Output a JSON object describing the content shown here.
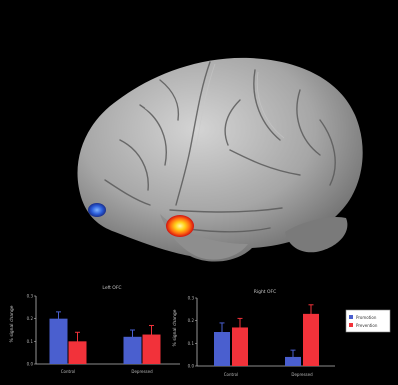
{
  "colors": {
    "background": "#000000",
    "brain_surface": "#a9a9a9",
    "series_promotion": "#4a5fcf",
    "series_prevention": "#f2323a",
    "activation_hot": "#ffd21a",
    "activation_cool": "#2a5bd8"
  },
  "chart_data": [
    {
      "type": "bar",
      "title": "Left OFC",
      "ylabel": "% signal change",
      "categories": [
        "Control",
        "Depressed"
      ],
      "ylim": [
        0,
        0.3
      ],
      "yticks": [
        "0.3",
        "0.2",
        "0.1",
        "0.0"
      ],
      "series": [
        {
          "name": "Promotion",
          "values": [
            0.2,
            0.12
          ],
          "errors": [
            0.03,
            0.03
          ]
        },
        {
          "name": "Prevention",
          "values": [
            0.1,
            0.13
          ],
          "errors": [
            0.04,
            0.04
          ]
        }
      ]
    },
    {
      "type": "bar",
      "title": "Right OFC",
      "ylabel": "% signal change",
      "categories": [
        "Control",
        "Depressed"
      ],
      "ylim": [
        0,
        0.3
      ],
      "yticks": [
        "0.3",
        "0.2",
        "0.1",
        "0.0"
      ],
      "series": [
        {
          "name": "Promotion",
          "values": [
            0.15,
            0.04
          ],
          "errors": [
            0.04,
            0.03
          ]
        },
        {
          "name": "Prevention",
          "values": [
            0.17,
            0.23
          ],
          "errors": [
            0.04,
            0.04
          ]
        }
      ]
    }
  ],
  "legend": {
    "items": [
      {
        "label": "Promotion",
        "color": "#4a5fcf"
      },
      {
        "label": "Prevention",
        "color": "#f2323a"
      }
    ]
  }
}
